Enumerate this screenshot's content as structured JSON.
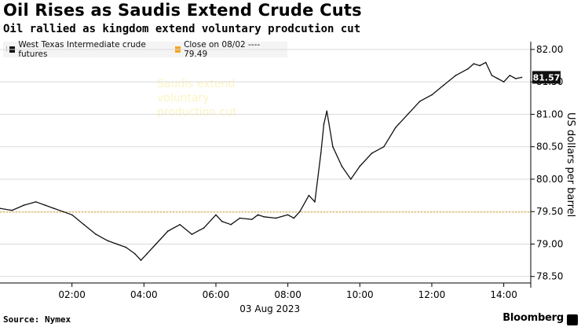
{
  "header": {
    "title": "Oil Rises as Saudis Extend Crude Cuts",
    "subtitle": "Oil rallied as kingdom extend voluntary prodcution cut"
  },
  "legend": {
    "items": [
      {
        "label": "West Texas Intermediate crude futures",
        "color": "#111111"
      },
      {
        "label": "Close on 08/02 ---- 79.49",
        "color": "#f5a623"
      }
    ]
  },
  "annotation": "Saudis extend\nvoluntary\nproduction cut",
  "footer": {
    "source": "Source: Nymex",
    "brand": "Bloomberg"
  },
  "chart_data": {
    "type": "line",
    "ylabel": "US dollars per barrel",
    "date_label": "03 Aug 2023",
    "ylim": [
      78.4,
      82.12
    ],
    "yticks": [
      78.5,
      79.0,
      79.5,
      80.0,
      80.5,
      81.0,
      81.5,
      82.0
    ],
    "ytick_labels": [
      "78.50",
      "79.00",
      "79.50",
      "80.00",
      "80.50",
      "81.00",
      "81.50",
      "82.00"
    ],
    "xlim": [
      "00:00",
      "14:45"
    ],
    "xticks": [
      "02:00",
      "04:00",
      "06:00",
      "08:00",
      "10:00",
      "12:00",
      "14:00"
    ],
    "reference_line": {
      "label": "Close on 08/02",
      "value": 79.49,
      "color": "#f5a623"
    },
    "last_value_label": "81.57",
    "last_value": 81.57,
    "series": [
      {
        "name": "West Texas Intermediate crude futures",
        "color": "#111111",
        "x": [
          "00:00",
          "00:20",
          "00:40",
          "01:00",
          "01:15",
          "01:30",
          "01:45",
          "02:00",
          "02:20",
          "02:40",
          "03:00",
          "03:15",
          "03:30",
          "03:45",
          "03:55",
          "04:05",
          "04:20",
          "04:40",
          "05:00",
          "05:20",
          "05:40",
          "06:00",
          "06:10",
          "06:25",
          "06:40",
          "07:00",
          "07:10",
          "07:20",
          "07:40",
          "08:00",
          "08:10",
          "08:20",
          "08:35",
          "08:45",
          "08:55",
          "09:00",
          "09:05",
          "09:15",
          "09:30",
          "09:45",
          "10:00",
          "10:20",
          "10:40",
          "11:00",
          "11:20",
          "11:40",
          "12:00",
          "12:20",
          "12:40",
          "13:00",
          "13:10",
          "13:20",
          "13:30",
          "13:40",
          "13:50",
          "14:00",
          "14:10",
          "14:20",
          "14:30"
        ],
        "values": [
          79.55,
          79.52,
          79.6,
          79.65,
          79.6,
          79.55,
          79.5,
          79.45,
          79.3,
          79.15,
          79.05,
          79.0,
          78.95,
          78.85,
          78.75,
          78.85,
          79.0,
          79.2,
          79.3,
          79.15,
          79.25,
          79.45,
          79.35,
          79.3,
          79.4,
          79.38,
          79.45,
          79.42,
          79.4,
          79.45,
          79.4,
          79.5,
          79.75,
          79.65,
          80.4,
          80.85,
          81.05,
          80.5,
          80.2,
          80.0,
          80.2,
          80.4,
          80.5,
          80.8,
          81.0,
          81.2,
          81.3,
          81.45,
          81.6,
          81.7,
          81.78,
          81.75,
          81.8,
          81.6,
          81.55,
          81.5,
          81.6,
          81.55,
          81.57
        ]
      }
    ]
  }
}
